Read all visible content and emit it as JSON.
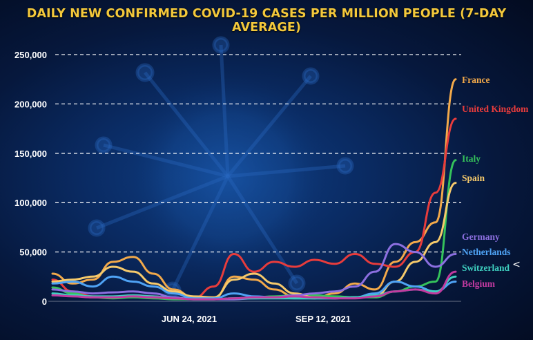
{
  "chart_data": {
    "type": "line",
    "title": "DAILY NEW CONFIRMED COVID-19 CASES PER MILLION PEOPLE (7-DAY AVERAGE)",
    "xlabel": "",
    "ylabel": "",
    "ylim": [
      0,
      250000
    ],
    "yticks": [
      "250,000",
      "200,000",
      "150,000",
      "100,000",
      "50,000",
      "0"
    ],
    "ytick_values": [
      250000,
      200000,
      150000,
      100000,
      50000,
      0
    ],
    "xtick_labels": [
      "JUN 24, 2021",
      "SEP 12, 2021"
    ],
    "grid": "horizontal dashed",
    "legend": "labels at right end of lines",
    "x": [
      0,
      5,
      10,
      15,
      20,
      25,
      30,
      35,
      40,
      45,
      50,
      55,
      60,
      65,
      70,
      75,
      80,
      85,
      90,
      95,
      100
    ],
    "series": [
      {
        "name": "France",
        "color": "#f2a94a",
        "values": [
          28000,
          18000,
          22000,
          40000,
          45000,
          28000,
          12000,
          4000,
          3000,
          25000,
          22000,
          12000,
          5000,
          3000,
          8000,
          18000,
          12000,
          40000,
          60000,
          80000,
          225000
        ]
      },
      {
        "name": "United Kingdom",
        "color": "#e83c3c",
        "values": [
          22000,
          10000,
          5000,
          4000,
          6000,
          5000,
          3000,
          3000,
          15000,
          48000,
          30000,
          40000,
          35000,
          42000,
          38000,
          48000,
          38000,
          35000,
          50000,
          110000,
          185000
        ]
      },
      {
        "name": "Italy",
        "color": "#35c25b",
        "values": [
          14000,
          8000,
          4000,
          3000,
          4000,
          3000,
          2000,
          2000,
          2000,
          3000,
          4000,
          5000,
          6000,
          6000,
          5000,
          4000,
          4000,
          10000,
          15000,
          20000,
          143000
        ]
      },
      {
        "name": "Spain",
        "color": "#f5c96b",
        "values": [
          20000,
          22000,
          25000,
          35000,
          30000,
          18000,
          10000,
          5000,
          4000,
          22000,
          28000,
          18000,
          8000,
          4000,
          3000,
          4000,
          5000,
          20000,
          40000,
          60000,
          120000
        ]
      },
      {
        "name": "Germany",
        "color": "#8c6fe0",
        "values": [
          12000,
          10000,
          8000,
          9000,
          10000,
          8000,
          4000,
          2000,
          2000,
          2000,
          3000,
          4000,
          6000,
          8000,
          10000,
          15000,
          30000,
          58000,
          50000,
          35000,
          48000
        ]
      },
      {
        "name": "Netherlands",
        "color": "#4fa3f5",
        "values": [
          18000,
          20000,
          15000,
          25000,
          20000,
          15000,
          8000,
          3000,
          3000,
          8000,
          5000,
          4000,
          3000,
          3000,
          3000,
          4000,
          8000,
          20000,
          15000,
          10000,
          20000
        ]
      },
      {
        "name": "Switzerland",
        "color": "#3fd0c0",
        "values": [
          8000,
          6000,
          5000,
          5000,
          6000,
          5000,
          3000,
          2000,
          2000,
          3000,
          3000,
          3000,
          3000,
          3000,
          3000,
          4000,
          6000,
          10000,
          12000,
          10000,
          25000
        ]
      },
      {
        "name": "Belgium",
        "color": "#c23aa0",
        "values": [
          6000,
          5000,
          4000,
          4000,
          5000,
          4000,
          3000,
          2000,
          2000,
          3000,
          4000,
          4000,
          5000,
          4000,
          3000,
          3000,
          5000,
          10000,
          12000,
          8000,
          30000
        ]
      }
    ]
  },
  "share_icon": "share-icon"
}
